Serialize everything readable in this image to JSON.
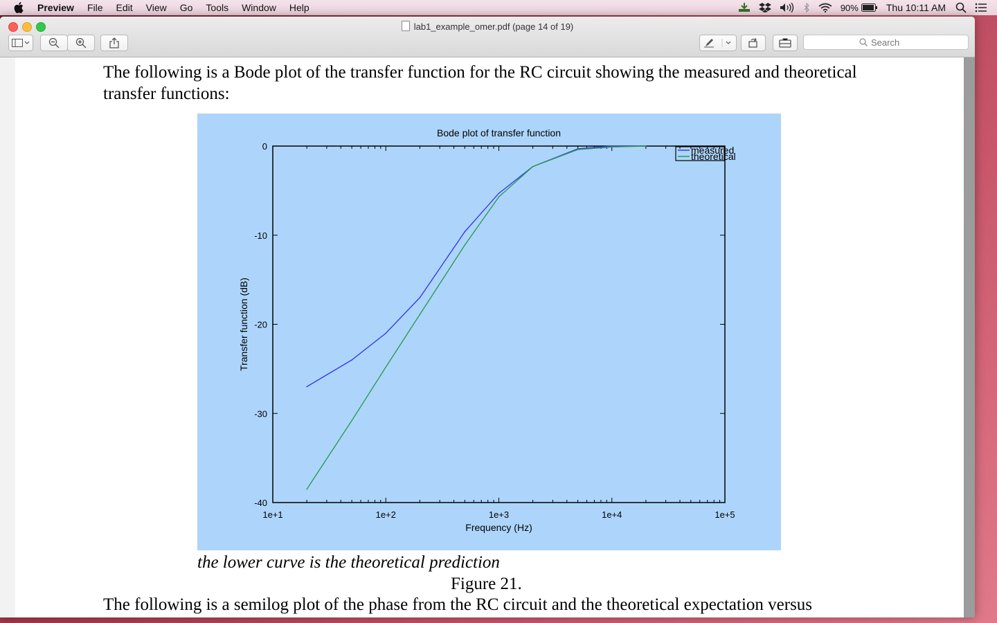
{
  "menubar": {
    "app_name": "Preview",
    "items": [
      "File",
      "Edit",
      "View",
      "Go",
      "Tools",
      "Window",
      "Help"
    ],
    "battery": "90%",
    "clock": "Thu 10:11 AM"
  },
  "window": {
    "title": "lab1_example_omer.pdf (page 14 of 19)",
    "search_placeholder": "Search"
  },
  "document": {
    "paragraph_1": "The following is a Bode plot of the transfer function for the RC circuit showing the measured and theoretical transfer functions:",
    "caption_note": "the lower curve is the theoretical prediction",
    "figure_label": "Figure 21.",
    "paragraph_2": "The following is a semilog plot of the phase from the RC circuit and the theoretical expectation versus"
  },
  "chart_data": {
    "type": "line",
    "title": "Bode plot of transfer function",
    "xlabel": "Frequency (Hz)",
    "ylabel": "Transfer function (dB)",
    "x_scale": "log",
    "xlim": [
      10,
      100000
    ],
    "ylim": [
      -40,
      0
    ],
    "x_ticks": [
      "1e+1",
      "1e+2",
      "1e+3",
      "1e+4",
      "1e+5"
    ],
    "y_ticks": [
      "0",
      "-10",
      "-20",
      "-30",
      "-40"
    ],
    "legend_position": "top-right",
    "grid": false,
    "background_color": "#add5fb",
    "series": [
      {
        "name": "measured",
        "color": "#3a3aee",
        "x": [
          20,
          50,
          100,
          200,
          500,
          1000,
          2000,
          5000,
          10000,
          20000
        ],
        "y": [
          -27.0,
          -24.0,
          -21.0,
          -17.0,
          -9.6,
          -5.3,
          -2.3,
          -0.3,
          0,
          0
        ]
      },
      {
        "name": "theoretical",
        "color": "#2e9a4e",
        "x": [
          20,
          50,
          100,
          200,
          500,
          1000,
          2000,
          5000,
          10000,
          20000
        ],
        "y": [
          -38.5,
          -30.8,
          -24.8,
          -18.9,
          -11.1,
          -5.7,
          -2.3,
          -0.4,
          -0.1,
          0
        ]
      }
    ]
  }
}
